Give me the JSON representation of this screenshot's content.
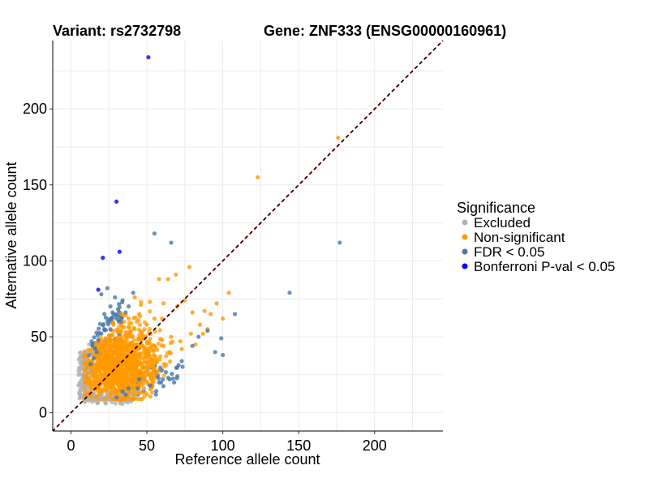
{
  "chart_data": {
    "type": "scatter",
    "title_left": "Variant: rs2732798",
    "title_right": "Gene: ZNF333 (ENSG00000160961)",
    "xlabel": "Reference allele count",
    "ylabel": "Alternative allele count",
    "xlim": [
      -12,
      245
    ],
    "ylim": [
      -12,
      245
    ],
    "x_ticks": [
      "0",
      "50",
      "100",
      "150",
      "200"
    ],
    "x_tick_values": [
      0,
      50,
      100,
      150,
      200
    ],
    "y_ticks": [
      "0",
      "50",
      "100",
      "150",
      "200"
    ],
    "y_tick_values": [
      0,
      50,
      100,
      150,
      200
    ],
    "grid": true,
    "reference_line": {
      "slope": 1,
      "intercept": 0,
      "style": "dashed",
      "colors": [
        "#cc0000",
        "#000000"
      ]
    },
    "legend": {
      "title": "Significance",
      "position": "right",
      "entries": [
        {
          "label": "Excluded",
          "color": "#b3b3b3"
        },
        {
          "label": "Non-significant",
          "color": "#ff9900"
        },
        {
          "label": "FDR < 0.05",
          "color": "#4878a8"
        },
        {
          "label": "Bonferroni P-val < 0.05",
          "color": "#0000ff"
        }
      ]
    },
    "series": [
      {
        "name": "Excluded",
        "color": "#b3b3b3",
        "points": [
          [
            6,
            12
          ],
          [
            8,
            10
          ],
          [
            10,
            8
          ],
          [
            12,
            8
          ],
          [
            14,
            9
          ],
          [
            9,
            14
          ],
          [
            7,
            16
          ],
          [
            6,
            20
          ],
          [
            8,
            22
          ],
          [
            5,
            25
          ],
          [
            9,
            18
          ],
          [
            11,
            10
          ],
          [
            16,
            8
          ],
          [
            18,
            9
          ],
          [
            20,
            10
          ],
          [
            22,
            8
          ],
          [
            25,
            9
          ],
          [
            28,
            11
          ],
          [
            30,
            10
          ],
          [
            33,
            12
          ],
          [
            36,
            13
          ],
          [
            40,
            12
          ],
          [
            8,
            30
          ],
          [
            10,
            35
          ],
          [
            12,
            28
          ],
          [
            6,
            28
          ],
          [
            14,
            40
          ],
          [
            12,
            45
          ],
          [
            10,
            40
          ],
          [
            7,
            34
          ],
          [
            15,
            12
          ],
          [
            20,
            12
          ],
          [
            24,
            13
          ],
          [
            34,
            6
          ],
          [
            38,
            8
          ],
          [
            43,
            14
          ],
          [
            48,
            16
          ],
          [
            27,
            7
          ],
          [
            9,
            26
          ],
          [
            5,
            18
          ]
        ]
      },
      {
        "name": "Non-significant",
        "color": "#ff9900",
        "points": [
          [
            176,
            181
          ],
          [
            123,
            155
          ],
          [
            78,
            96
          ],
          [
            69,
            91
          ],
          [
            58,
            88
          ],
          [
            64,
            88
          ],
          [
            42,
            76
          ],
          [
            46,
            71
          ],
          [
            61,
            72
          ],
          [
            52,
            73
          ],
          [
            55,
            62
          ],
          [
            60,
            62
          ],
          [
            88,
            67
          ],
          [
            92,
            65
          ],
          [
            80,
            66
          ],
          [
            96,
            72
          ],
          [
            104,
            79
          ],
          [
            100,
            62
          ],
          [
            87,
            52
          ],
          [
            70,
            70
          ],
          [
            75,
            74
          ],
          [
            85,
            58
          ],
          [
            90,
            55
          ],
          [
            79,
            52
          ],
          [
            66,
            50
          ],
          [
            72,
            47
          ],
          [
            60,
            48
          ],
          [
            82,
            45
          ],
          [
            73,
            42
          ],
          [
            65,
            40
          ],
          [
            55,
            44
          ],
          [
            48,
            50
          ],
          [
            42,
            55
          ],
          [
            50,
            58
          ],
          [
            38,
            62
          ],
          [
            33,
            65
          ],
          [
            35,
            60
          ],
          [
            45,
            65
          ],
          [
            28,
            58
          ],
          [
            31,
            54
          ],
          [
            40,
            50
          ]
        ]
      },
      {
        "name": "FDR < 0.05",
        "color": "#4878a8",
        "points": [
          [
            55,
            118
          ],
          [
            66,
            112
          ],
          [
            177,
            112
          ],
          [
            144,
            79
          ],
          [
            108,
            65
          ],
          [
            90,
            54
          ],
          [
            84,
            50
          ],
          [
            80,
            44
          ],
          [
            95,
            40
          ],
          [
            100,
            38
          ],
          [
            99,
            49
          ],
          [
            73,
            34
          ],
          [
            60,
            28
          ],
          [
            65,
            22
          ],
          [
            68,
            20
          ],
          [
            58,
            20
          ],
          [
            52,
            18
          ],
          [
            44,
            16
          ],
          [
            56,
            12
          ],
          [
            45,
            22
          ],
          [
            38,
            16
          ],
          [
            36,
            12
          ],
          [
            34,
            14
          ],
          [
            30,
            10
          ],
          [
            24,
            60
          ],
          [
            28,
            65
          ],
          [
            26,
            70
          ],
          [
            31,
            68
          ],
          [
            34,
            74
          ],
          [
            36,
            66
          ],
          [
            33,
            60
          ],
          [
            22,
            55
          ],
          [
            20,
            52
          ],
          [
            18,
            48
          ],
          [
            16,
            42
          ],
          [
            14,
            45
          ],
          [
            12,
            38
          ],
          [
            17,
            40
          ],
          [
            15,
            36
          ],
          [
            13,
            32
          ],
          [
            20,
            78
          ],
          [
            24,
            82
          ],
          [
            29,
            76
          ],
          [
            41,
            79
          ],
          [
            38,
            70
          ],
          [
            22,
            65
          ],
          [
            26,
            55
          ],
          [
            30,
            62
          ]
        ]
      },
      {
        "name": "Bonferroni P-val < 0.05",
        "color": "#0000ff",
        "points": [
          [
            51,
            234
          ],
          [
            30,
            139
          ],
          [
            32,
            106
          ],
          [
            21,
            102
          ],
          [
            18,
            81
          ]
        ]
      }
    ],
    "dense_cloud": {
      "name": "Non-significant",
      "color": "#ff9900",
      "center": [
        30,
        30
      ],
      "spread": [
        14,
        14
      ],
      "count": 1400
    }
  }
}
